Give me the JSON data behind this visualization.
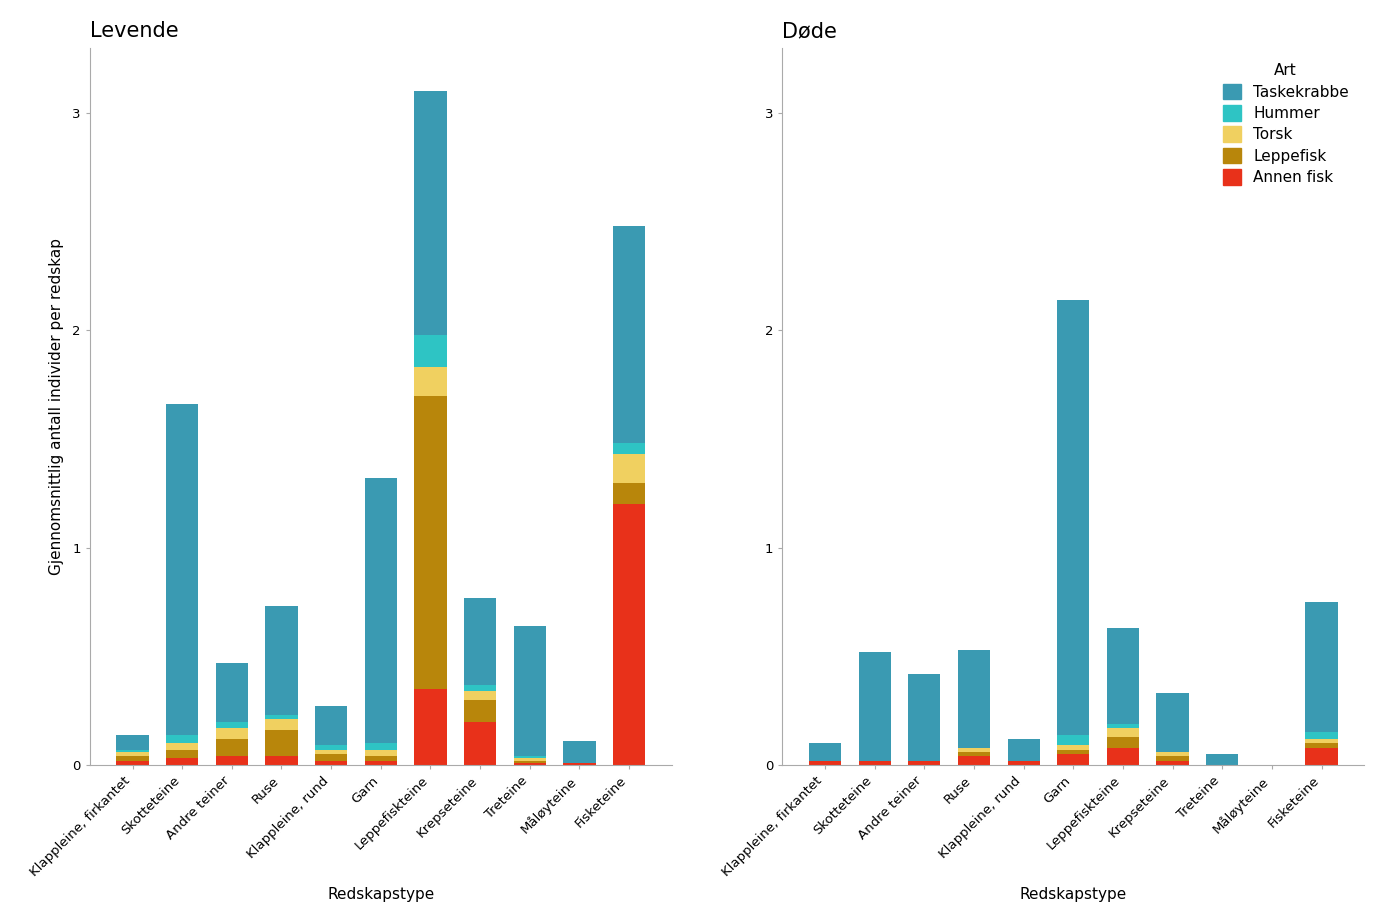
{
  "categories": [
    "Klappleine, firkantet",
    "Skotteteine",
    "Andre teiner",
    "Ruse",
    "Klappleine, rund",
    "Garn",
    "Leppefiskteine",
    "Krepseteine",
    "Treteine",
    "Måløyteine",
    "Fisketeine"
  ],
  "species": [
    "Annen fisk",
    "Leppefisk",
    "Torsk",
    "Hummer",
    "Taskekrabbe"
  ],
  "colors": [
    "#e8311a",
    "#b8860b",
    "#f0d060",
    "#2ec4c4",
    "#3a9ab2"
  ],
  "levende": {
    "Annen fisk": [
      0.02,
      0.03,
      0.04,
      0.04,
      0.02,
      0.02,
      0.35,
      0.2,
      0.01,
      0.01,
      1.2
    ],
    "Leppefisk": [
      0.02,
      0.04,
      0.08,
      0.12,
      0.03,
      0.02,
      1.35,
      0.1,
      0.01,
      0.0,
      0.1
    ],
    "Torsk": [
      0.02,
      0.03,
      0.05,
      0.05,
      0.02,
      0.03,
      0.13,
      0.04,
      0.01,
      0.0,
      0.13
    ],
    "Hummer": [
      0.01,
      0.04,
      0.03,
      0.02,
      0.02,
      0.03,
      0.15,
      0.03,
      0.01,
      0.0,
      0.05
    ],
    "Taskekrabbe": [
      0.07,
      1.52,
      0.27,
      0.5,
      0.18,
      1.22,
      1.12,
      0.4,
      0.6,
      0.1,
      1.0
    ]
  },
  "dode": {
    "Annen fisk": [
      0.02,
      0.02,
      0.02,
      0.04,
      0.02,
      0.05,
      0.08,
      0.02,
      0.0,
      0.0,
      0.08
    ],
    "Leppefisk": [
      0.0,
      0.0,
      0.0,
      0.02,
      0.0,
      0.02,
      0.05,
      0.02,
      0.0,
      0.0,
      0.02
    ],
    "Torsk": [
      0.0,
      0.0,
      0.0,
      0.02,
      0.0,
      0.02,
      0.04,
      0.02,
      0.0,
      0.0,
      0.02
    ],
    "Hummer": [
      0.0,
      0.0,
      0.0,
      0.0,
      0.0,
      0.05,
      0.02,
      0.0,
      0.0,
      0.0,
      0.03
    ],
    "Taskekrabbe": [
      0.08,
      0.5,
      0.4,
      0.45,
      0.1,
      2.0,
      0.44,
      0.27,
      0.05,
      0.0,
      0.6
    ]
  },
  "left_title": "Levende",
  "right_title": "Døde",
  "legend_title": "Art",
  "legend_species": [
    "Taskekrabbe",
    "Hummer",
    "Torsk",
    "Leppefisk",
    "Annen fisk"
  ],
  "legend_colors": [
    "#3a9ab2",
    "#2ec4c4",
    "#f0d060",
    "#b8860b",
    "#e8311a"
  ],
  "xlabel": "Redskapstype",
  "ylabel": "Gjennomsnittlig antall individer per redskap",
  "ylim": [
    0,
    3.3
  ],
  "yticks": [
    0,
    1,
    2,
    3
  ],
  "background_color": "#ffffff",
  "title_fontsize": 15,
  "axis_label_fontsize": 11,
  "tick_fontsize": 9.5,
  "legend_fontsize": 11
}
